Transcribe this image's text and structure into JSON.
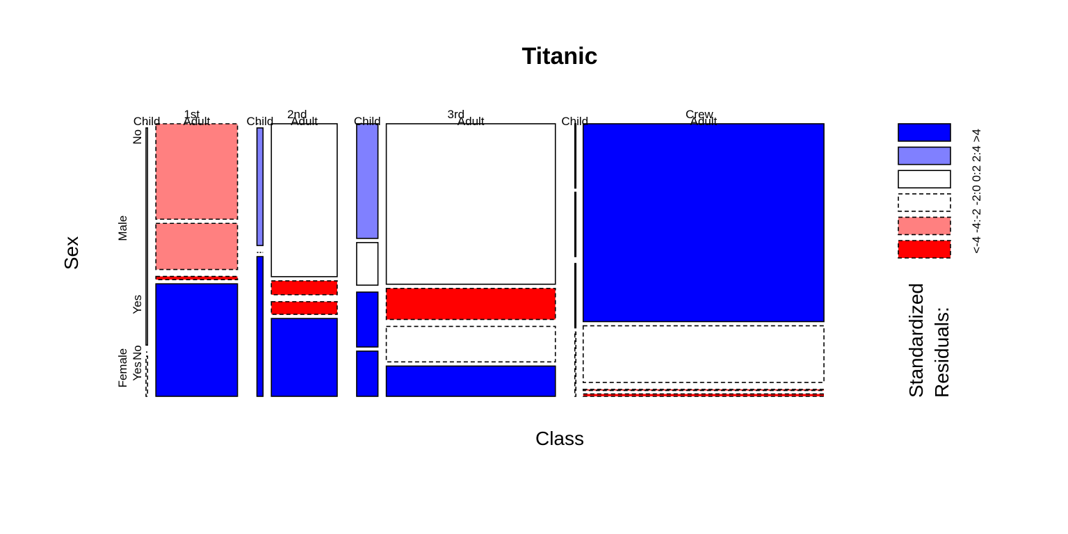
{
  "chart_data": {
    "type": "mosaic",
    "title": "Titanic",
    "xlabel": "Class",
    "ylabel": "Sex",
    "class_levels": [
      "1st",
      "2nd",
      "3rd",
      "Crew"
    ],
    "age_levels": [
      "Child",
      "Adult"
    ],
    "sex_levels": [
      "Male",
      "Female"
    ],
    "survived_levels": [
      "No",
      "Yes"
    ],
    "legend": {
      "title": "Standardized\nResiduals:",
      "breaks": [
        "<-4",
        "-4:-2",
        "-2:0",
        "0:2",
        "2:4",
        ">4"
      ],
      "colors": [
        "#ff0000",
        "#ff8080",
        "#ffffff",
        "#ffffff",
        "#8080ff",
        "#0000ff"
      ],
      "dashed": [
        true,
        true,
        true,
        false,
        false,
        false
      ]
    },
    "colors": {
      "pos_strong": "#0000ff",
      "pos": "#8080ff",
      "neutral": "#ffffff",
      "neg": "#ff8080",
      "neg_strong": "#ff0000"
    },
    "cells": [
      {
        "class": "1st",
        "age": "Child",
        "sex": "Male",
        "survived": "No",
        "count": 0,
        "residual": "0:2"
      },
      {
        "class": "1st",
        "age": "Child",
        "sex": "Male",
        "survived": "Yes",
        "count": 5,
        "residual": "0:2"
      },
      {
        "class": "1st",
        "age": "Child",
        "sex": "Female",
        "survived": "No",
        "count": 0,
        "residual": "-2:0"
      },
      {
        "class": "1st",
        "age": "Child",
        "sex": "Female",
        "survived": "Yes",
        "count": 1,
        "residual": "-2:0"
      },
      {
        "class": "1st",
        "age": "Adult",
        "sex": "Male",
        "survived": "No",
        "count": 118,
        "residual": "-4:-2"
      },
      {
        "class": "1st",
        "age": "Adult",
        "sex": "Male",
        "survived": "Yes",
        "count": 57,
        "residual": "-4:-2"
      },
      {
        "class": "1st",
        "age": "Adult",
        "sex": "Female",
        "survived": "No",
        "count": 4,
        "residual": "<-4"
      },
      {
        "class": "1st",
        "age": "Adult",
        "sex": "Female",
        "survived": "Yes",
        "count": 140,
        "residual": ">4"
      },
      {
        "class": "2nd",
        "age": "Child",
        "sex": "Male",
        "survived": "No",
        "count": 0,
        "residual": "2:4"
      },
      {
        "class": "2nd",
        "age": "Child",
        "sex": "Male",
        "survived": "Yes",
        "count": 11,
        "residual": "2:4"
      },
      {
        "class": "2nd",
        "age": "Child",
        "sex": "Female",
        "survived": "No",
        "count": 0,
        "residual": "-2:0"
      },
      {
        "class": "2nd",
        "age": "Child",
        "sex": "Female",
        "survived": "Yes",
        "count": 13,
        "residual": ">4"
      },
      {
        "class": "2nd",
        "age": "Adult",
        "sex": "Male",
        "survived": "No",
        "count": 154,
        "residual": "0:2"
      },
      {
        "class": "2nd",
        "age": "Adult",
        "sex": "Male",
        "survived": "Yes",
        "count": 14,
        "residual": "<-4"
      },
      {
        "class": "2nd",
        "age": "Adult",
        "sex": "Female",
        "survived": "No",
        "count": 13,
        "residual": "<-4"
      },
      {
        "class": "2nd",
        "age": "Adult",
        "sex": "Female",
        "survived": "Yes",
        "count": 80,
        "residual": ">4"
      },
      {
        "class": "3rd",
        "age": "Child",
        "sex": "Male",
        "survived": "No",
        "count": 35,
        "residual": "2:4"
      },
      {
        "class": "3rd",
        "age": "Child",
        "sex": "Male",
        "survived": "Yes",
        "count": 13,
        "residual": "0:2"
      },
      {
        "class": "3rd",
        "age": "Child",
        "sex": "Female",
        "survived": "No",
        "count": 17,
        "residual": ">4"
      },
      {
        "class": "3rd",
        "age": "Child",
        "sex": "Female",
        "survived": "Yes",
        "count": 14,
        "residual": ">4"
      },
      {
        "class": "3rd",
        "age": "Adult",
        "sex": "Male",
        "survived": "No",
        "count": 387,
        "residual": "0:2"
      },
      {
        "class": "3rd",
        "age": "Adult",
        "sex": "Male",
        "survived": "Yes",
        "count": 75,
        "residual": "<-4"
      },
      {
        "class": "3rd",
        "age": "Adult",
        "sex": "Female",
        "survived": "No",
        "count": 89,
        "residual": "-2:0"
      },
      {
        "class": "3rd",
        "age": "Adult",
        "sex": "Female",
        "survived": "Yes",
        "count": 76,
        "residual": ">4"
      },
      {
        "class": "Crew",
        "age": "Child",
        "sex": "Male",
        "survived": "No",
        "count": 0,
        "residual": "0:2"
      },
      {
        "class": "Crew",
        "age": "Child",
        "sex": "Male",
        "survived": "Yes",
        "count": 0,
        "residual": "0:2"
      },
      {
        "class": "Crew",
        "age": "Child",
        "sex": "Female",
        "survived": "No",
        "count": 0,
        "residual": "0:2"
      },
      {
        "class": "Crew",
        "age": "Child",
        "sex": "Female",
        "survived": "Yes",
        "count": 0,
        "residual": "-2:0"
      },
      {
        "class": "Crew",
        "age": "Adult",
        "sex": "Male",
        "survived": "No",
        "count": 670,
        "residual": ">4"
      },
      {
        "class": "Crew",
        "age": "Adult",
        "sex": "Male",
        "survived": "Yes",
        "count": 192,
        "residual": "-2:0"
      },
      {
        "class": "Crew",
        "age": "Adult",
        "sex": "Female",
        "survived": "No",
        "count": 3,
        "residual": "<-4"
      },
      {
        "class": "Crew",
        "age": "Adult",
        "sex": "Female",
        "survived": "Yes",
        "count": 20,
        "residual": "<-4"
      }
    ]
  }
}
